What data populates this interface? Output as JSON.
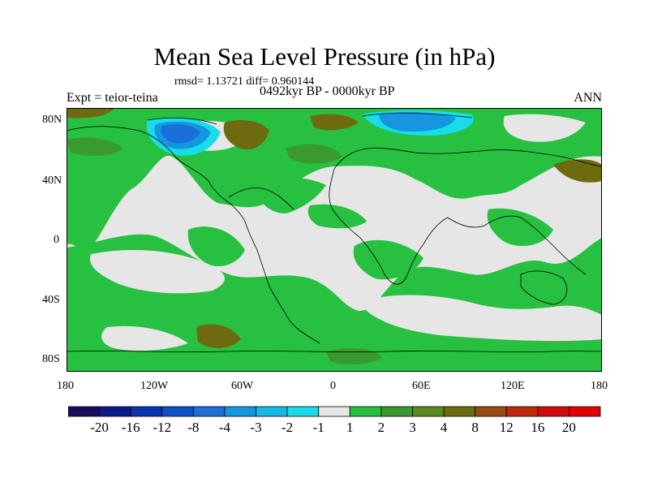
{
  "title": "Mean Sea Level Pressure (in hPa)",
  "stats_line": "rmsd= 1.13721 diff= 0.960144",
  "period_line": "0492kyr BP - 0000kyr BP",
  "experiment": "Expt = teior-teina",
  "season": "ANN",
  "lat_ticks": [
    "80N",
    "40N",
    "0",
    "40S",
    "80S"
  ],
  "lon_ticks": [
    "180",
    "120W",
    "60W",
    "0",
    "60E",
    "120E",
    "180"
  ],
  "colorbar": {
    "labels": [
      "-20",
      "-16",
      "-12",
      "-8",
      "-4",
      "-3",
      "-2",
      "-1",
      "1",
      "2",
      "3",
      "4",
      "8",
      "12",
      "16",
      "20"
    ],
    "colors": [
      "#1a0a5e",
      "#0b1a8c",
      "#0a34b0",
      "#1050c8",
      "#1a70d8",
      "#1496e0",
      "#10bce6",
      "#18dce8",
      "#e6e6e6",
      "#28c040",
      "#3a9a30",
      "#5a8a20",
      "#6e6a10",
      "#9a4a10",
      "#c02a08",
      "#d40a0a",
      "#e40000"
    ]
  },
  "palette": {
    "land_background": "#e6e6e6",
    "plus_1_2": "#28c040",
    "plus_2_3": "#3a9a30",
    "plus_3_4": "#5a8a20",
    "plus_4_8": "#6e6a10",
    "minus_1_2": "#18dce8",
    "minus_2_3": "#10bce6",
    "minus_3_4": "#1496e0",
    "minus_4_8": "#1a70d8"
  }
}
